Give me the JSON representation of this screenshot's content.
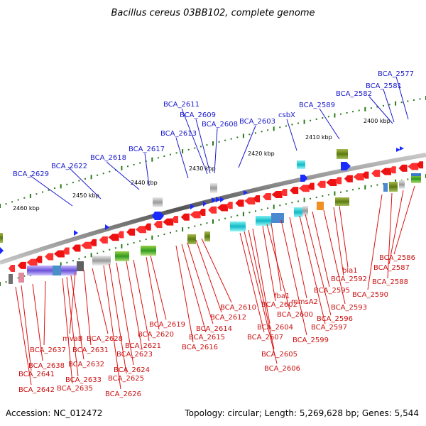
{
  "title": "Bacillus cereus 03BB102, complete genome",
  "footer": {
    "accession": "Accession: NC_012472",
    "topology": "Topology: circular; Length: 5,269,628 bp; Genes: 5,544"
  },
  "scale_labels": [
    "2400 kbp",
    "2410 kbp",
    "2420 kbp",
    "2430 kbp",
    "2440 kbp",
    "2450 kbp",
    "2460 kbp"
  ],
  "upper_labels": [
    "BCA_2577",
    "BCA_2581",
    "BCA_2582",
    "BCA_2589",
    "csbX",
    "BCA_2603",
    "BCA_2608",
    "BCA_2609",
    "BCA_2611",
    "BCA_2613",
    "BCA_2617",
    "BCA_2618",
    "BCA_2622",
    "BCA_2629"
  ],
  "lower_labels": [
    "BCA_2586",
    "BCA_2587",
    "BCA_2588",
    "bla1",
    "BCA_2590",
    "BCA_2592",
    "BCA_2593",
    "BCA_2595",
    "BCA_2596",
    "BCA_2597",
    "mmsA2",
    "BCA_2599",
    "fba1",
    "BCA_2600",
    "BCA_2602",
    "BCA_2604",
    "BCA_2605",
    "BCA_2606",
    "BCA_2607",
    "BCA_2610",
    "BCA_2612",
    "BCA_2614",
    "BCA_2615",
    "BCA_2616",
    "BCA_2619",
    "BCA_2620",
    "BCA_2621",
    "BCA_2623",
    "BCA_2624",
    "BCA_2625",
    "BCA_2626",
    "BCA_2628",
    "mvaB",
    "BCA_2631",
    "BCA_2632",
    "BCA_2633",
    "BCA_2635",
    "BCA_2637",
    "BCA_2638",
    "BCA_2641",
    "BCA_2642"
  ],
  "colors": {
    "upper_label": "#1a1acc",
    "lower_label": "#cc1111",
    "backbone": "#8a8a8a"
  }
}
